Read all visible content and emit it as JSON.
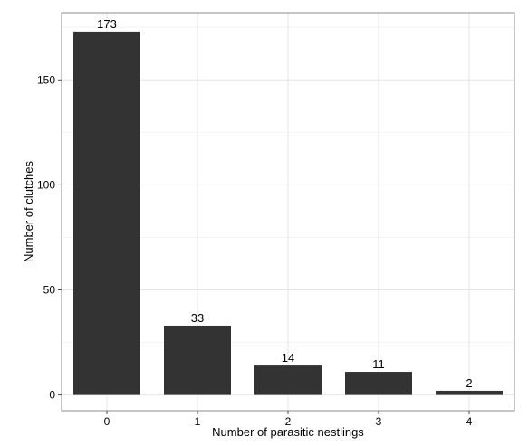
{
  "chart_data": {
    "type": "bar",
    "title": "",
    "xlabel": "Number of parasitic nestlings",
    "ylabel": "Number of clutches",
    "categories": [
      "0",
      "1",
      "2",
      "3",
      "4"
    ],
    "values": [
      173,
      33,
      14,
      11,
      2
    ],
    "data_labels": [
      "173",
      "33",
      "14",
      "11",
      "2"
    ],
    "yticks": [
      0,
      50,
      100,
      150
    ],
    "ytick_labels": [
      "0",
      "50",
      "100",
      "150"
    ],
    "ylim": [
      -7.5,
      182
    ],
    "grid": true,
    "legend": "none",
    "colors": {
      "bar": "#333333",
      "grid_major": "#e5e5e5",
      "grid_minor": "#f4f4f4",
      "frame": "#8c8c8c"
    }
  }
}
